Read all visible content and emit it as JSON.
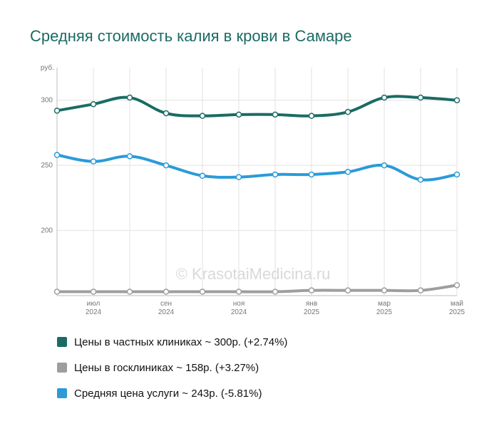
{
  "chart_data": {
    "type": "line",
    "title": "Средняя стоимость калия в крови в Самаре",
    "ylabel": "руб.",
    "ylim": [
      150,
      325
    ],
    "yticks": [
      200,
      250,
      300
    ],
    "xticks": [
      {
        "month": "июл",
        "year": "2024",
        "index": 1
      },
      {
        "month": "сен",
        "year": "2024",
        "index": 3
      },
      {
        "month": "ноя",
        "year": "2024",
        "index": 5
      },
      {
        "month": "янв",
        "year": "2025",
        "index": 7
      },
      {
        "month": "мар",
        "year": "2025",
        "index": 9
      },
      {
        "month": "май",
        "year": "2025",
        "index": 11
      }
    ],
    "x_count": 12,
    "grid": true,
    "legend_position": "bottom",
    "watermark": "© KrasotaiMedicina.ru",
    "series": [
      {
        "name": "Цены в частных клиниках ~ 300р. (+2.74%)",
        "color": "#1b6b64",
        "values": [
          292,
          297,
          302,
          290,
          288,
          289,
          289,
          288,
          291,
          302,
          302,
          300
        ]
      },
      {
        "name": "Цены в госклиниках ~ 158р. (+3.27%)",
        "color": "#9e9e9e",
        "values": [
          153,
          153,
          153,
          153,
          153,
          153,
          153,
          154,
          154,
          154,
          154,
          158
        ]
      },
      {
        "name": "Средняя цена услуги ~ 243р. (-5.81%)",
        "color": "#2a9bd8",
        "values": [
          258,
          253,
          257,
          250,
          242,
          241,
          243,
          243,
          245,
          250,
          239,
          243
        ]
      }
    ]
  }
}
